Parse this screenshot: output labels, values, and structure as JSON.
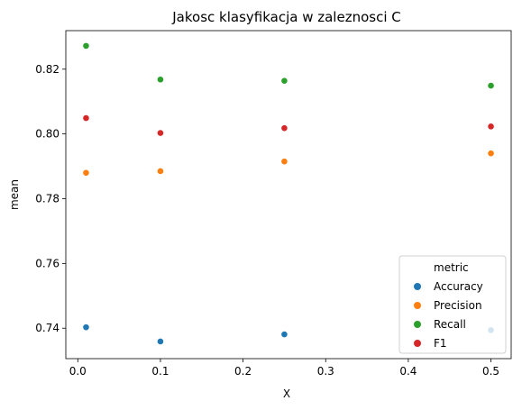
{
  "chart_data": {
    "type": "scatter",
    "title": "Jakosc klasyfikacja w zaleznosci C",
    "xlabel": "X",
    "ylabel": "mean",
    "x": [
      0.01,
      0.1,
      0.25,
      0.5
    ],
    "xlim": [
      -0.0145,
      0.5245
    ],
    "ylim": [
      0.7306,
      0.8319
    ],
    "xticks": [
      0.0,
      0.1,
      0.2,
      0.3,
      0.4,
      0.5
    ],
    "xtick_labels": [
      "0.0",
      "0.1",
      "0.2",
      "0.3",
      "0.4",
      "0.5"
    ],
    "yticks": [
      0.74,
      0.76,
      0.78,
      0.8,
      0.82
    ],
    "ytick_labels": [
      "0.74",
      "0.76",
      "0.78",
      "0.80",
      "0.82"
    ],
    "legend": {
      "title": "metric",
      "placement": "lower-right"
    },
    "grid": false,
    "series": [
      {
        "name": "Accuracy",
        "color": "#1f77b4",
        "values": [
          0.7403,
          0.7359,
          0.7381,
          0.7394
        ]
      },
      {
        "name": "Precision",
        "color": "#ff7f0e",
        "values": [
          0.788,
          0.7885,
          0.7915,
          0.794
        ]
      },
      {
        "name": "Recall",
        "color": "#2ca02c",
        "values": [
          0.8272,
          0.8168,
          0.8164,
          0.8149
        ]
      },
      {
        "name": "F1",
        "color": "#d62728",
        "values": [
          0.8049,
          0.8003,
          0.8018,
          0.8023
        ]
      }
    ]
  }
}
